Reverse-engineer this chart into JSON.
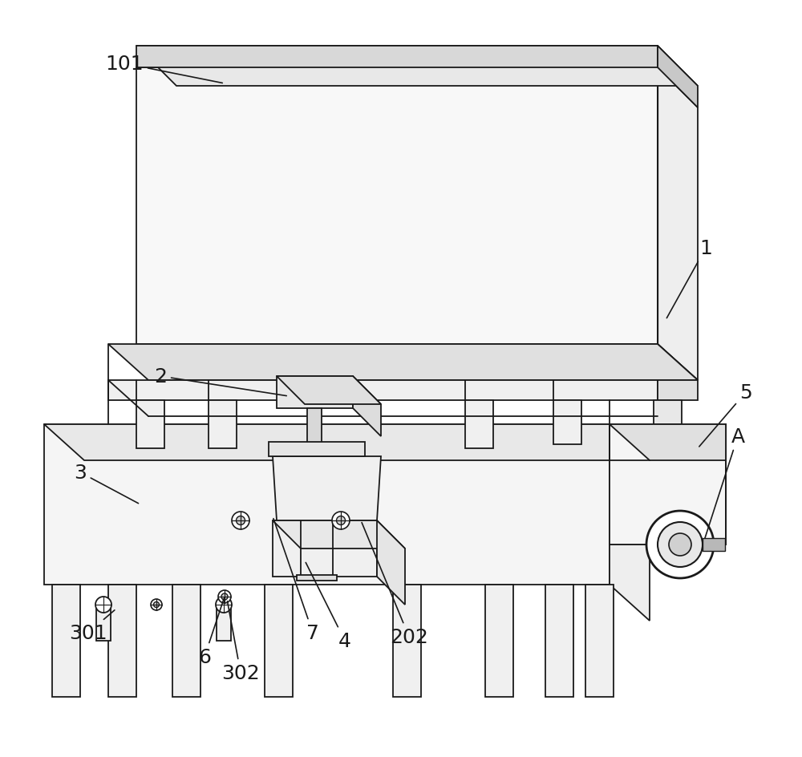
{
  "bg_color": "#ffffff",
  "line_color": "#1a1a1a",
  "lw": 1.3,
  "fig_width": 10.0,
  "fig_height": 9.45
}
